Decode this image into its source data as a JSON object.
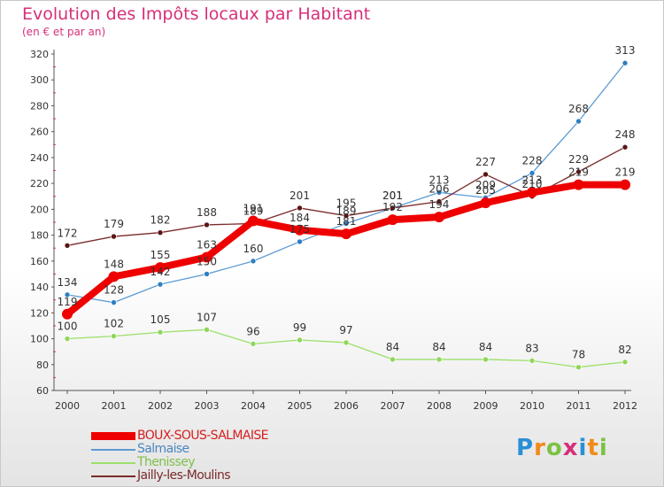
{
  "title": "Evolution des Impôts locaux par Habitant",
  "subtitle": "(en € et par an)",
  "logo": {
    "text": "Proxiti",
    "letter_colors": [
      "#2a8fd6",
      "#f08a17",
      "#7cc243",
      "#d6307a",
      "#2a8fd6",
      "#f08a17",
      "#7cc243"
    ]
  },
  "chart_data": {
    "type": "line",
    "title": "Evolution des Impôts locaux par Habitant",
    "subtitle": "(en € et par an)",
    "xlabel": "",
    "ylabel": "",
    "categories": [
      "2000",
      "2001",
      "2002",
      "2003",
      "2004",
      "2005",
      "2006",
      "2007",
      "2008",
      "2009",
      "2010",
      "2011",
      "2012"
    ],
    "yticks": [
      60,
      80,
      100,
      120,
      140,
      160,
      180,
      200,
      220,
      240,
      260,
      280,
      300,
      320
    ],
    "ylim": [
      60,
      320
    ],
    "grid": false,
    "legend": "bottom-left",
    "series": [
      {
        "name": "BOUX-SOUS-SALMAISE",
        "color": "#ee0000",
        "marker_color": "#ee0000",
        "values": [
          119,
          148,
          155,
          163,
          191,
          184,
          181,
          192,
          194,
          205,
          213,
          219,
          219
        ],
        "labels": [
          "119",
          "148",
          "155",
          "163",
          "191",
          "184",
          "181",
          "192",
          "194",
          "205",
          "213",
          "219",
          "219"
        ],
        "thick": true
      },
      {
        "name": "Salmaise",
        "color": "#5b9bd5",
        "marker_color": "#2f7fc0",
        "values": [
          134,
          128,
          142,
          150,
          160,
          175,
          189,
          201,
          213,
          209,
          228,
          268,
          313
        ],
        "labels": [
          "134",
          "128",
          "142",
          "150",
          "160",
          "175",
          "189",
          "201",
          "213",
          "209",
          "228",
          "268",
          "313"
        ],
        "thick": false
      },
      {
        "name": "Thenissey",
        "color": "#9be06a",
        "marker_color": "#8fd65a",
        "values": [
          100,
          102,
          105,
          107,
          96,
          99,
          97,
          84,
          84,
          84,
          83,
          78,
          82
        ],
        "labels": [
          "100",
          "102",
          "105",
          "107",
          "96",
          "99",
          "97",
          "84",
          "84",
          "84",
          "83",
          "78",
          "82"
        ],
        "thick": false
      },
      {
        "name": "Jailly-les-Moulins",
        "color": "#7a2a2a",
        "marker_color": "#5a1414",
        "values": [
          172,
          179,
          182,
          188,
          189,
          201,
          195,
          201,
          206,
          227,
          210,
          229,
          248
        ],
        "labels": [
          "172",
          "179",
          "182",
          "188",
          "189",
          "201",
          "195",
          "201",
          "206",
          "227",
          "210",
          "229",
          "248"
        ],
        "thick": false
      }
    ]
  }
}
